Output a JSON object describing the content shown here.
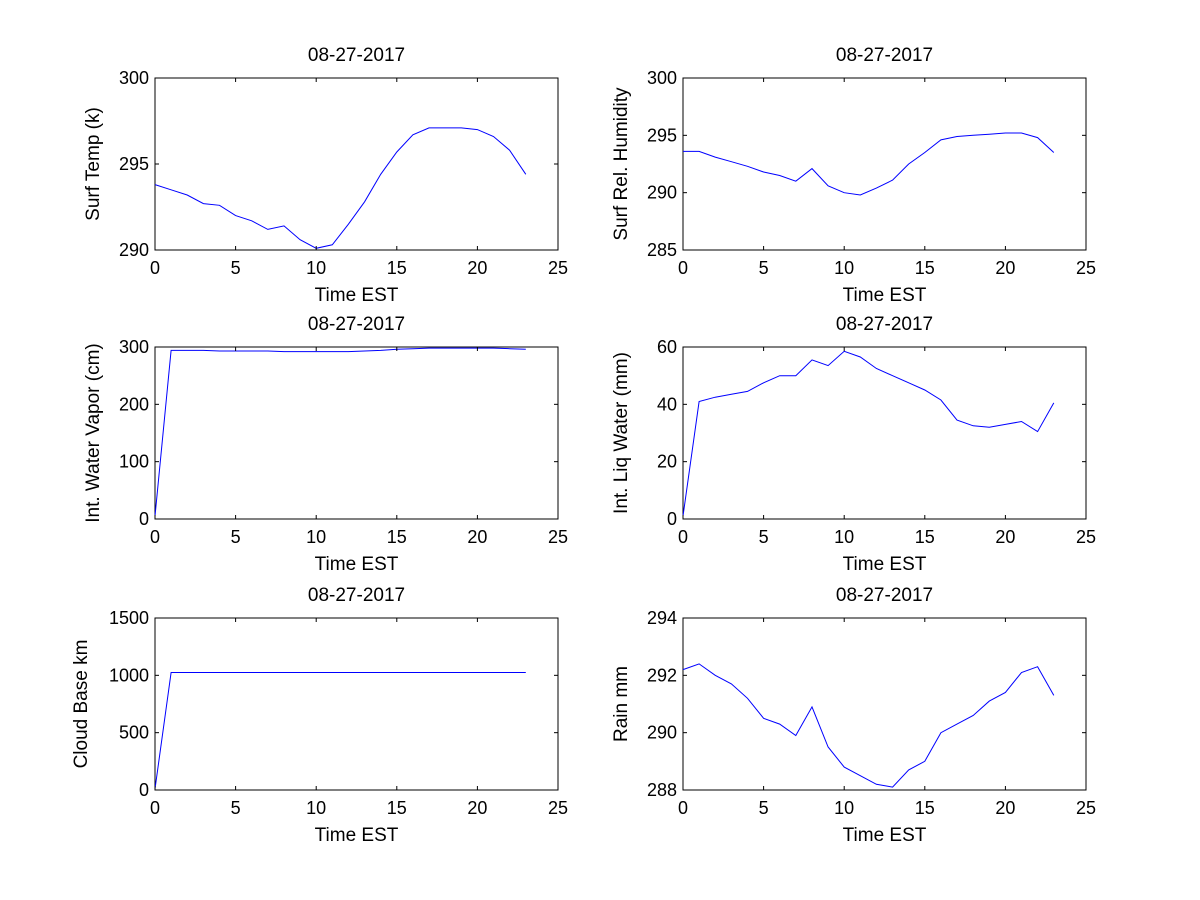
{
  "chart_data": [
    {
      "type": "line",
      "title": "08-27-2017",
      "xlabel": "Time EST",
      "ylabel": "Surf Temp (k)",
      "xlim": [
        0,
        25
      ],
      "ylim": [
        290,
        300
      ],
      "xticks": [
        0,
        5,
        10,
        15,
        20,
        25
      ],
      "yticks": [
        290,
        295,
        300
      ],
      "grid": false,
      "color": "#0000ff",
      "x": [
        0,
        1,
        2,
        3,
        4,
        5,
        6,
        7,
        8,
        9,
        10,
        11,
        12,
        13,
        14,
        15,
        16,
        17,
        18,
        19,
        20,
        21,
        22,
        23
      ],
      "y": [
        293.8,
        293.5,
        293.2,
        292.7,
        292.6,
        292.0,
        291.7,
        291.2,
        291.4,
        290.6,
        290.1,
        290.3,
        291.5,
        292.8,
        294.4,
        295.7,
        296.7,
        297.1,
        297.1,
        297.1,
        297.0,
        296.6,
        295.8,
        294.4
      ]
    },
    {
      "type": "line",
      "title": "08-27-2017",
      "xlabel": "Time EST",
      "ylabel": "Surf Rel. Humidity",
      "xlim": [
        0,
        25
      ],
      "ylim": [
        285,
        300
      ],
      "xticks": [
        0,
        5,
        10,
        15,
        20,
        25
      ],
      "yticks": [
        285,
        290,
        295,
        300
      ],
      "grid": false,
      "color": "#0000ff",
      "x": [
        0,
        1,
        2,
        3,
        4,
        5,
        6,
        7,
        8,
        9,
        10,
        11,
        12,
        13,
        14,
        15,
        16,
        17,
        18,
        19,
        20,
        21,
        22,
        23
      ],
      "y": [
        293.6,
        293.6,
        293.1,
        292.7,
        292.3,
        291.8,
        291.5,
        291.0,
        292.1,
        290.6,
        290.0,
        289.8,
        290.4,
        291.1,
        292.5,
        293.5,
        294.6,
        294.9,
        295.0,
        295.1,
        295.2,
        295.2,
        294.8,
        293.5
      ]
    },
    {
      "type": "line",
      "title": "08-27-2017",
      "xlabel": "Time EST",
      "ylabel": "Int. Water Vapor (cm)",
      "xlim": [
        0,
        25
      ],
      "ylim": [
        0,
        300
      ],
      "xticks": [
        0,
        5,
        10,
        15,
        20,
        25
      ],
      "yticks": [
        0,
        100,
        200,
        300
      ],
      "grid": false,
      "color": "#0000ff",
      "x": [
        0,
        1,
        2,
        3,
        4,
        5,
        6,
        7,
        8,
        9,
        10,
        11,
        12,
        13,
        14,
        15,
        16,
        17,
        18,
        19,
        20,
        21,
        22,
        23
      ],
      "y": [
        5,
        294,
        294,
        294,
        293,
        293,
        293,
        293,
        292,
        292,
        292,
        292,
        292,
        293,
        294,
        296,
        297,
        298,
        298,
        298,
        298,
        298,
        297,
        296
      ]
    },
    {
      "type": "line",
      "title": "08-27-2017",
      "xlabel": "Time EST",
      "ylabel": "Int. Liq Water (mm)",
      "xlim": [
        0,
        25
      ],
      "ylim": [
        0,
        60
      ],
      "xticks": [
        0,
        5,
        10,
        15,
        20,
        25
      ],
      "yticks": [
        0,
        20,
        40,
        60
      ],
      "grid": false,
      "color": "#0000ff",
      "x": [
        0,
        1,
        2,
        3,
        4,
        5,
        6,
        7,
        8,
        9,
        10,
        11,
        12,
        13,
        14,
        15,
        16,
        17,
        18,
        19,
        20,
        21,
        22,
        23
      ],
      "y": [
        1,
        41,
        42.5,
        43.5,
        44.5,
        47.5,
        50,
        50,
        55.5,
        53.5,
        58.5,
        56.5,
        52.5,
        50,
        47.5,
        45,
        41.5,
        34.5,
        32.5,
        32,
        33,
        34,
        30.5,
        40.5
      ]
    },
    {
      "type": "line",
      "title": "08-27-2017",
      "xlabel": "Time EST",
      "ylabel": "Cloud Base km",
      "xlim": [
        0,
        25
      ],
      "ylim": [
        0,
        1500
      ],
      "xticks": [
        0,
        5,
        10,
        15,
        20,
        25
      ],
      "yticks": [
        0,
        500,
        1000,
        1500
      ],
      "grid": false,
      "color": "#0000ff",
      "x": [
        0,
        1,
        2,
        3,
        4,
        5,
        6,
        7,
        8,
        9,
        10,
        11,
        12,
        13,
        14,
        15,
        16,
        17,
        18,
        19,
        20,
        21,
        22,
        23
      ],
      "y": [
        10,
        1025,
        1025,
        1025,
        1025,
        1025,
        1025,
        1025,
        1025,
        1025,
        1025,
        1025,
        1025,
        1025,
        1025,
        1025,
        1025,
        1025,
        1025,
        1025,
        1025,
        1025,
        1025,
        1025
      ]
    },
    {
      "type": "line",
      "title": "08-27-2017",
      "xlabel": "Time EST",
      "ylabel": "Rain mm",
      "xlim": [
        0,
        25
      ],
      "ylim": [
        288,
        294
      ],
      "xticks": [
        0,
        5,
        10,
        15,
        20,
        25
      ],
      "yticks": [
        288,
        290,
        292,
        294
      ],
      "grid": false,
      "color": "#0000ff",
      "x": [
        0,
        1,
        2,
        3,
        4,
        5,
        6,
        7,
        8,
        9,
        10,
        11,
        12,
        13,
        14,
        15,
        16,
        17,
        18,
        19,
        20,
        21,
        22,
        23
      ],
      "y": [
        292.2,
        292.4,
        292.0,
        291.7,
        291.2,
        290.5,
        290.3,
        289.9,
        290.9,
        289.5,
        288.8,
        288.5,
        288.2,
        288.1,
        288.7,
        289.0,
        290.0,
        290.3,
        290.6,
        291.1,
        291.4,
        292.1,
        292.3,
        291.3
      ]
    }
  ]
}
